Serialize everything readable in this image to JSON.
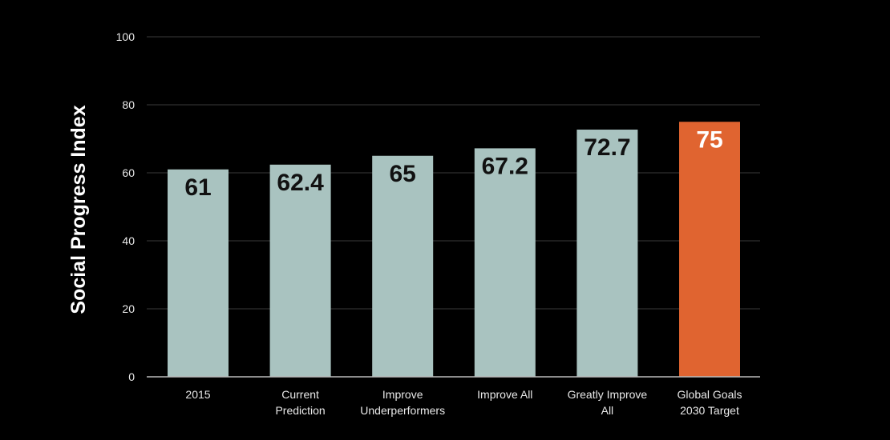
{
  "chart_data": {
    "type": "bar",
    "title": "",
    "xlabel": "",
    "ylabel": "Social Progress Index",
    "ylim": [
      0,
      100
    ],
    "yticks": [
      0,
      20,
      40,
      60,
      80,
      100
    ],
    "grid": true,
    "legend": "none",
    "categories": [
      [
        "2015"
      ],
      [
        "Current",
        "Prediction"
      ],
      [
        "Improve",
        "Underperformers"
      ],
      [
        "Improve All"
      ],
      [
        "Greatly Improve",
        "All"
      ],
      [
        "Global Goals",
        "2030 Target"
      ]
    ],
    "values": [
      61,
      62.4,
      65,
      67.2,
      72.7,
      75
    ],
    "data_labels": [
      "61",
      "62.4",
      "65",
      "67.2",
      "72.7",
      "75"
    ],
    "colors": {
      "background": "#000000",
      "bar": "#a9c3c0",
      "highlight_bar": "#e06430",
      "gridline": "#3a3a3a",
      "axis": "#bbbbbb",
      "label_on_bar": "#111111",
      "label_on_highlight": "#ffffff"
    },
    "highlight_index": 5
  }
}
